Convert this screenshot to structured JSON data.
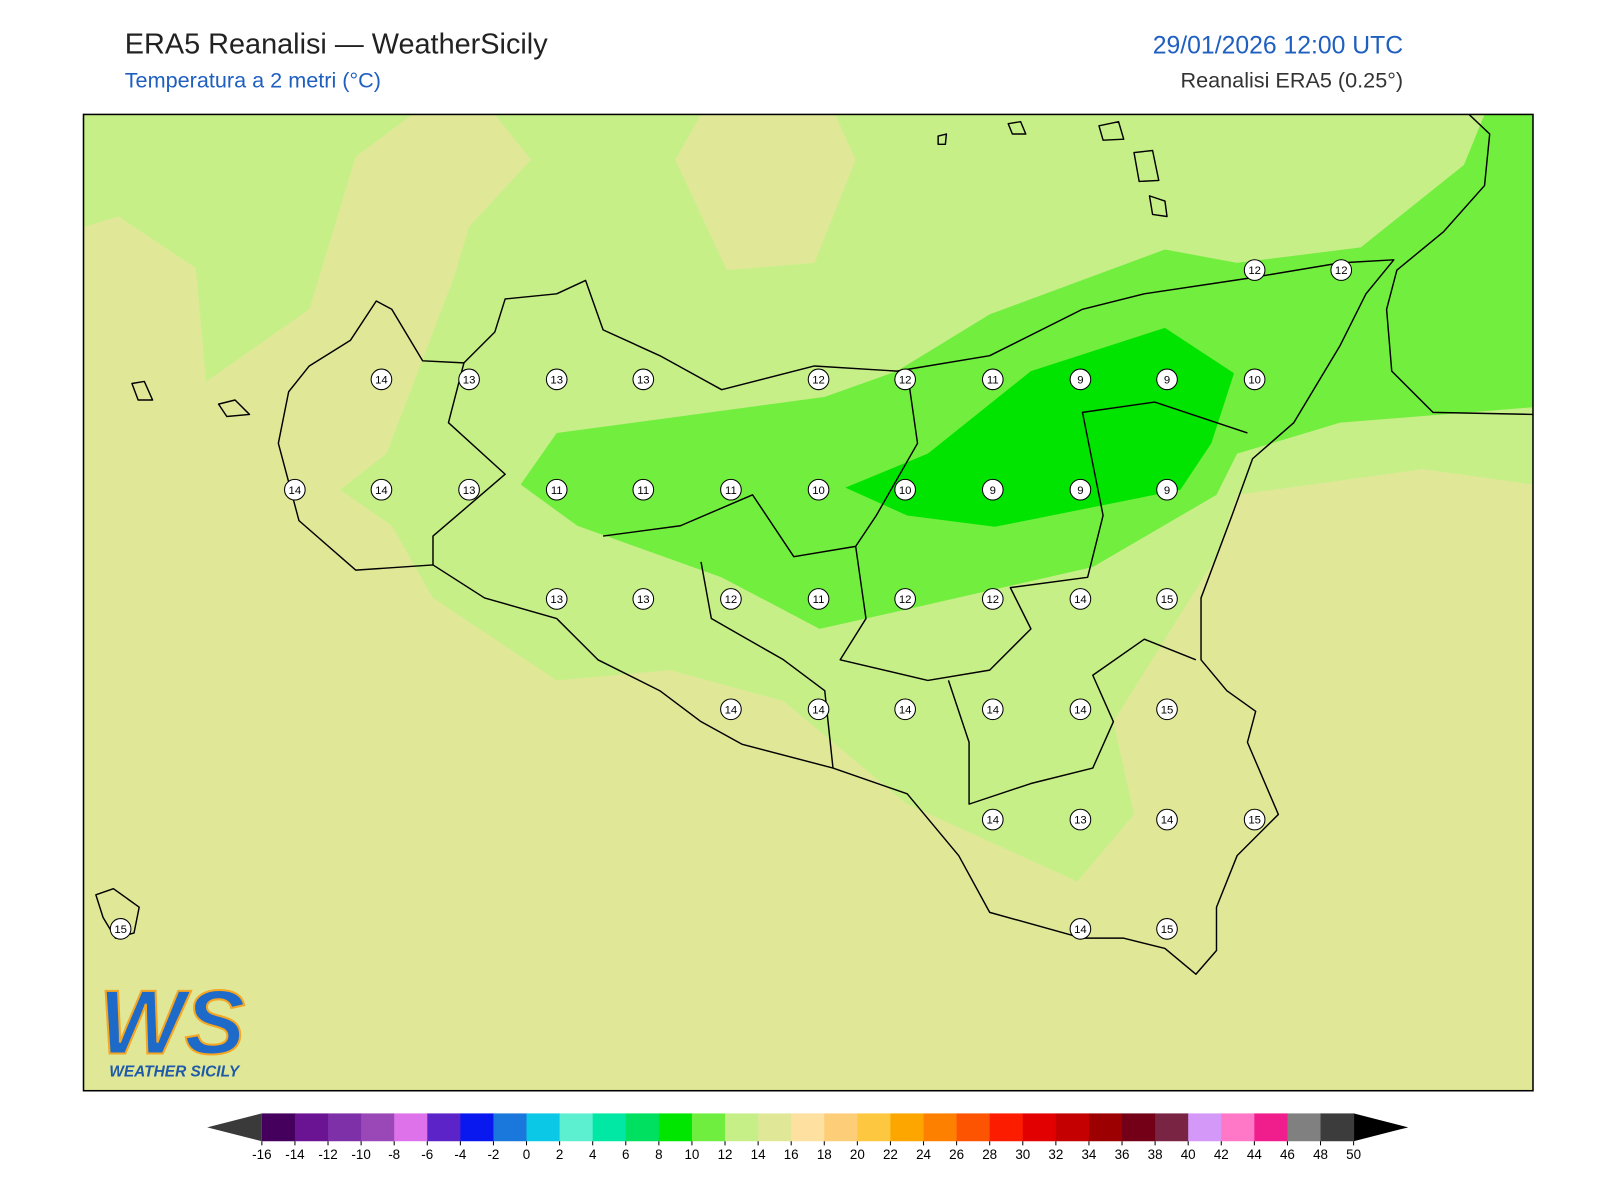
{
  "header": {
    "title": "ERA5 Reanalisi — WeatherSicily",
    "subtitle": "Temperatura a 2 metri (°C)",
    "datetime": "29/01/2026 12:00 UTC",
    "source": "Reanalisi ERA5 (0.25°)"
  },
  "map": {
    "stations": [
      12,
      12,
      14,
      13,
      13,
      13,
      12,
      12,
      11,
      9,
      9,
      10,
      14,
      14,
      13,
      11,
      11,
      11,
      10,
      10,
      9,
      9,
      9,
      13,
      13,
      12,
      11,
      12,
      12,
      14,
      15,
      14,
      14,
      14,
      14,
      14,
      15,
      14,
      13,
      14,
      15,
      15,
      14,
      15
    ]
  },
  "logo": {
    "text": "WS",
    "caption": "WEATHER SICILY"
  },
  "colorbar": {
    "ticks": [
      -16,
      -14,
      -12,
      -10,
      -8,
      -6,
      -4,
      -2,
      0,
      2,
      4,
      6,
      8,
      10,
      12,
      14,
      16,
      18,
      20,
      22,
      24,
      26,
      28,
      30,
      32,
      34,
      36,
      38,
      40,
      42,
      44,
      46,
      48,
      50
    ],
    "colors": [
      "#44005c",
      "#6a1494",
      "#7e30a8",
      "#9a48b8",
      "#de72ea",
      "#5c24c8",
      "#0a18f0",
      "#1a78dc",
      "#0ac8e6",
      "#5cf0d0",
      "#00e8a4",
      "#00e060",
      "#00e600",
      "#70ee40",
      "#c6ef88",
      "#e0e898",
      "#fee0a0",
      "#fdcd78",
      "#fdc840",
      "#fda600",
      "#fd8000",
      "#fc5400",
      "#fc1c00",
      "#e20000",
      "#c40000",
      "#9c0000",
      "#740018",
      "#7a2444",
      "#d498f8",
      "#ff78c8",
      "#f01e8c",
      "#808080",
      "#3c3c3c"
    ]
  }
}
